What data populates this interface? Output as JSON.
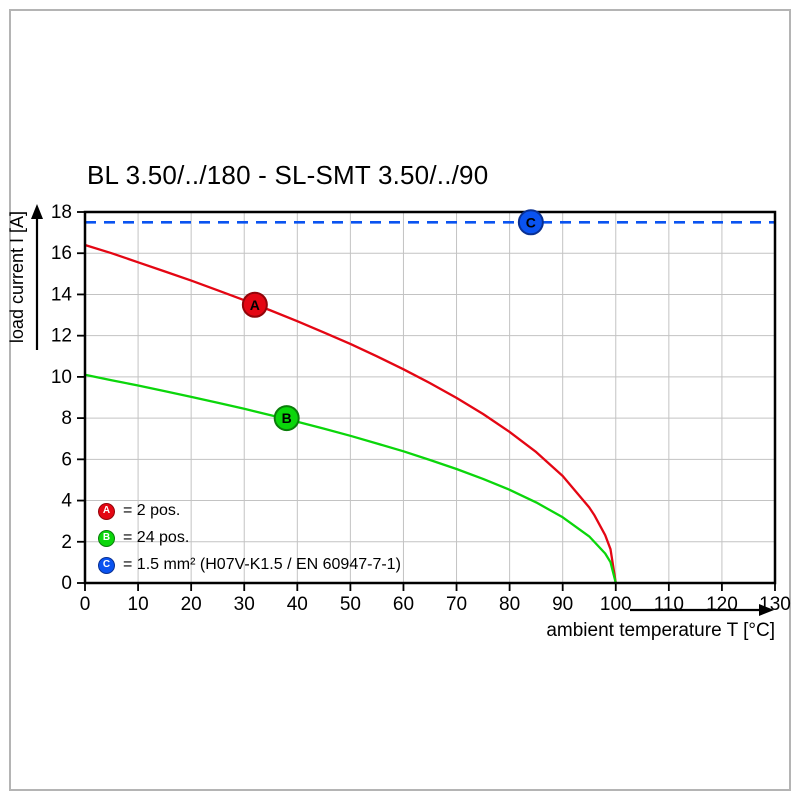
{
  "page": {
    "title": "BL 3.50/../180 - SL-SMT 3.50/../90"
  },
  "chart_data": {
    "type": "line",
    "title": "BL 3.50/../180 - SL-SMT 3.50/../90",
    "xlabel": "ambient temperature T [°C]",
    "ylabel": "load current I [A]",
    "xlim": [
      0,
      130
    ],
    "ylim": [
      0,
      18
    ],
    "xticks": [
      0,
      10,
      20,
      30,
      40,
      50,
      60,
      70,
      80,
      90,
      100,
      110,
      120,
      130
    ],
    "yticks": [
      0,
      2,
      4,
      6,
      8,
      10,
      12,
      14,
      16,
      18
    ],
    "grid": true,
    "legend_position": "bottom-left",
    "series": [
      {
        "name": "A",
        "label": "= 2 pos.",
        "color": "#e40613",
        "ring_color": "#920409",
        "line_style": "solid",
        "marker_at": [
          32,
          13.5
        ],
        "points": [
          [
            0,
            16.4
          ],
          [
            5,
            16.0
          ],
          [
            10,
            15.56
          ],
          [
            15,
            15.12
          ],
          [
            20,
            14.67
          ],
          [
            25,
            14.2
          ],
          [
            30,
            13.72
          ],
          [
            35,
            13.22
          ],
          [
            40,
            12.7
          ],
          [
            45,
            12.16
          ],
          [
            50,
            11.6
          ],
          [
            55,
            11.0
          ],
          [
            60,
            10.37
          ],
          [
            65,
            9.7
          ],
          [
            70,
            8.98
          ],
          [
            75,
            8.2
          ],
          [
            80,
            7.33
          ],
          [
            85,
            6.35
          ],
          [
            90,
            5.19
          ],
          [
            95,
            3.67
          ],
          [
            96,
            3.28
          ],
          [
            98,
            2.32
          ],
          [
            99,
            1.64
          ],
          [
            100,
            0
          ]
        ]
      },
      {
        "name": "B",
        "label": "= 24 pos.",
        "color": "#0bd60b",
        "ring_color": "#0a7d0a",
        "line_style": "solid",
        "marker_at": [
          38,
          8.0
        ],
        "points": [
          [
            0,
            10.1
          ],
          [
            5,
            9.84
          ],
          [
            10,
            9.58
          ],
          [
            15,
            9.31
          ],
          [
            20,
            9.03
          ],
          [
            25,
            8.75
          ],
          [
            30,
            8.45
          ],
          [
            35,
            8.14
          ],
          [
            40,
            7.82
          ],
          [
            45,
            7.49
          ],
          [
            50,
            7.14
          ],
          [
            55,
            6.77
          ],
          [
            60,
            6.39
          ],
          [
            65,
            5.97
          ],
          [
            70,
            5.53
          ],
          [
            75,
            5.05
          ],
          [
            80,
            4.52
          ],
          [
            85,
            3.91
          ],
          [
            90,
            3.19
          ],
          [
            95,
            2.26
          ],
          [
            98,
            1.43
          ],
          [
            99,
            1.01
          ],
          [
            100,
            0
          ]
        ]
      },
      {
        "name": "C",
        "label": "= 1.5 mm² (H07V-K1.5 / EN 60947-7-1)",
        "color": "#0a53f0",
        "ring_color": "#093092",
        "line_style": "dashed",
        "marker_at": [
          84,
          17.5
        ],
        "points": [
          [
            0,
            17.5
          ],
          [
            130,
            17.5
          ]
        ]
      }
    ]
  }
}
